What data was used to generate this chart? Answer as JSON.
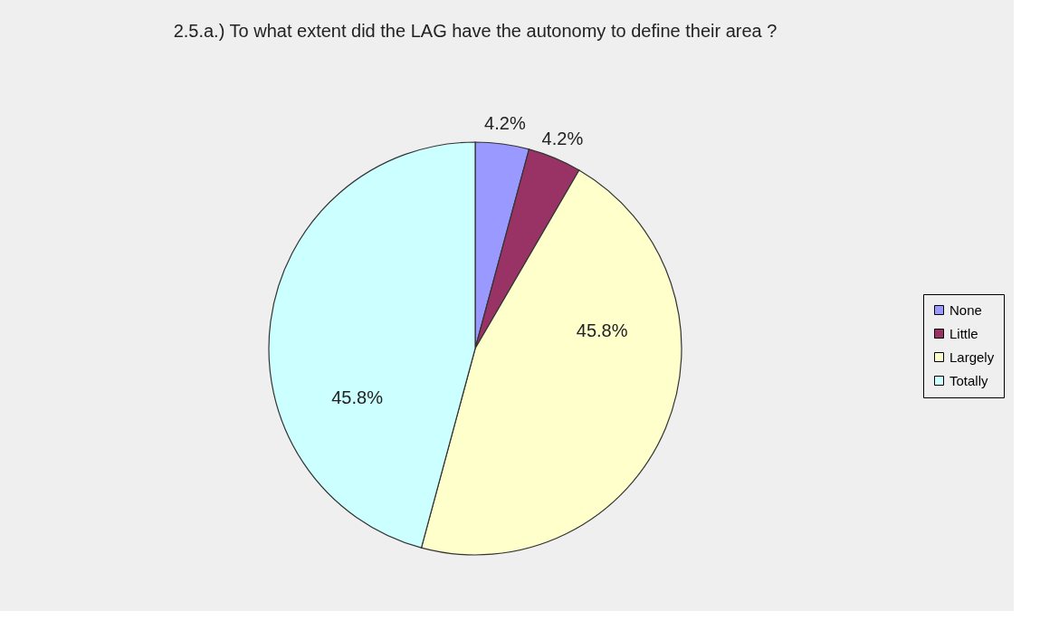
{
  "chart_data": {
    "type": "pie",
    "title": "2.5.a.) To what extent did the LAG have the autonomy to define their area ?",
    "categories": [
      "None",
      "Little",
      "Largely",
      "Totally"
    ],
    "values": [
      4.2,
      4.2,
      45.8,
      45.8
    ],
    "colors": [
      "#9999ff",
      "#993366",
      "#ffffcc",
      "#ccffff"
    ],
    "value_labels": [
      "4.2%",
      "4.2%",
      "45.8%",
      "45.8%"
    ],
    "legend": "right"
  }
}
